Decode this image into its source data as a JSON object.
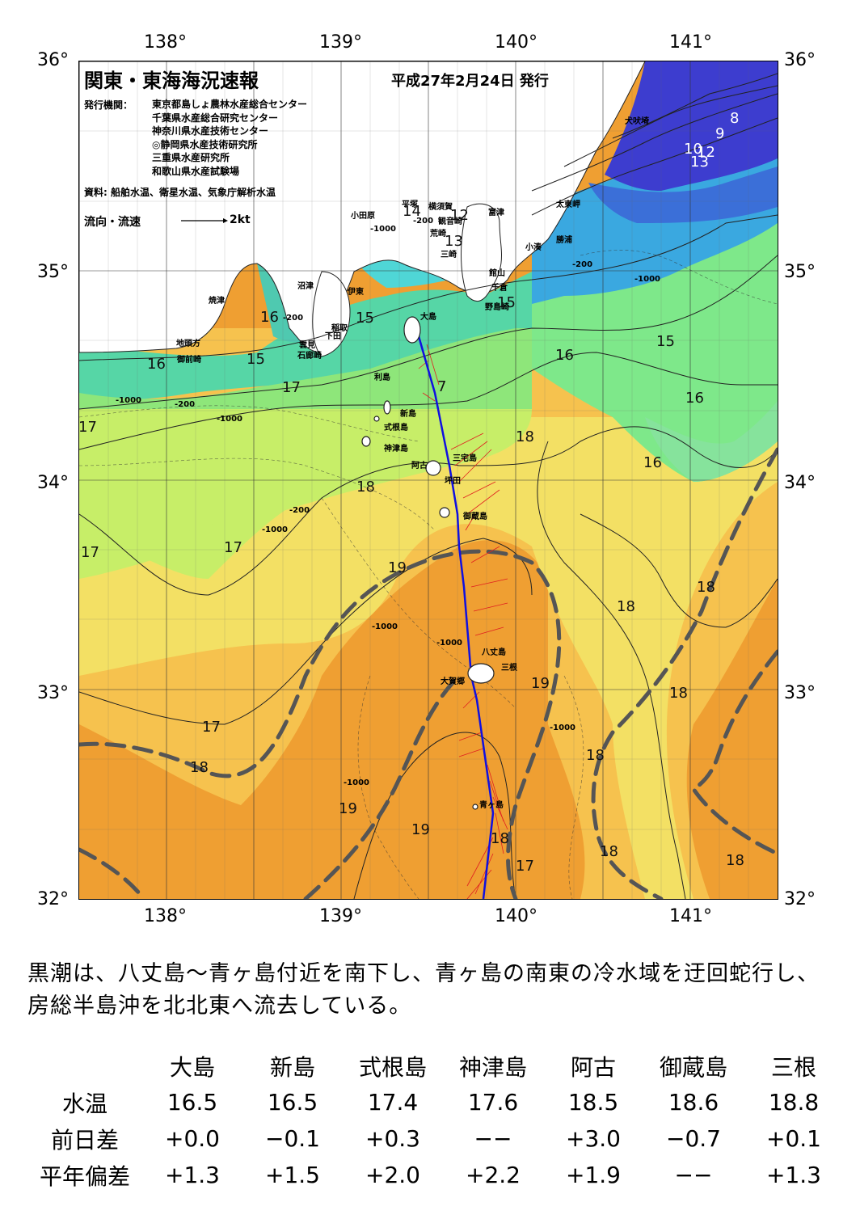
{
  "header": {
    "title": "関東・東海海況速報",
    "date": "平成27年2月24日 発行",
    "issuer_key": "発行機関：",
    "issuers": [
      "東京都島しょ農林水産総合センター",
      "千葉県水産総合研究センター",
      "神奈川県水産技術センター",
      "◎静岡県水産技術研究所",
      "三重県水産研究所",
      "和歌山県水産試験場"
    ],
    "source": "資料: 船舶水温、衛星水温、気象庁解析水温",
    "legend_label": "流向・流速",
    "legend_unit": "2kt"
  },
  "axes": {
    "lon_labels": [
      "138°",
      "139°",
      "140°",
      "141°"
    ],
    "lat_labels": [
      "36°",
      "35°",
      "34°",
      "33°",
      "32°"
    ]
  },
  "places": [
    "犬吠埼",
    "太東岬",
    "勝浦",
    "小湊",
    "富津",
    "館山",
    "千倉",
    "野島崎",
    "横須賀",
    "観音崎",
    "荒崎",
    "三崎",
    "平塚",
    "小田原",
    "沼津",
    "伊東",
    "焼津",
    "稲取",
    "下田",
    "雲見",
    "石廊崎",
    "地頭方",
    "御前崎",
    "大島",
    "利島",
    "新島",
    "式根島",
    "神津島",
    "三宅島",
    "阿古",
    "坪田",
    "御蔵島",
    "八丈島",
    "三根",
    "大賀郷",
    "青ヶ島"
  ],
  "isotherm_labels": [
    "8",
    "9",
    "10",
    "12",
    "13",
    "14",
    "12",
    "13",
    "15",
    "16",
    "16",
    "15",
    "15",
    "16",
    "15",
    "16",
    "17",
    "7",
    "17",
    "18",
    "18",
    "16",
    "17",
    "17",
    "19",
    "18",
    "18",
    "19",
    "18",
    "17",
    "18",
    "18",
    "19",
    "19",
    "18",
    "17",
    "18",
    "18"
  ],
  "depth_labels": [
    "-200",
    "-1000",
    "-200",
    "-1000",
    "-200",
    "-1000",
    "-1000",
    "-1000",
    "-1000",
    "-1000",
    "-1000",
    "-200",
    "-200",
    "-1000"
  ],
  "summary": "黒潮は、八丈島～青ヶ島付近を南下し、青ヶ島の南東の冷水域を迂回蛇行し、房総半島沖を北北東へ流去している。",
  "table": {
    "columns": [
      "大島",
      "新島",
      "式根島",
      "神津島",
      "阿古",
      "御蔵島",
      "三根"
    ],
    "rows": [
      {
        "label": "水温",
        "values": [
          "16.5",
          "16.5",
          "17.4",
          "17.6",
          "18.5",
          "18.6",
          "18.8"
        ]
      },
      {
        "label": "前日差",
        "values": [
          "+0.0",
          "−0.1",
          "+0.3",
          "−−",
          "+3.0",
          "−0.7",
          "+0.1"
        ]
      },
      {
        "label": "平年偏差",
        "values": [
          "+1.3",
          "+1.5",
          "+2.0",
          "+2.2",
          "+1.9",
          "−−",
          "+1.3"
        ]
      }
    ]
  },
  "colors": {
    "deep_blue": "#3d3dcf",
    "blue": "#3a8be0",
    "cyan": "#4fd6d6",
    "teal": "#56d6a6",
    "green": "#7ee88a",
    "yellow_green": "#c7ee68",
    "yellow": "#f3e064",
    "light_orange": "#f6c24e",
    "orange": "#ef9f32",
    "land": "#ffffff",
    "track": "#1010e0",
    "current_vectors": "#e02020",
    "kuroshio_axis": "#555555"
  }
}
